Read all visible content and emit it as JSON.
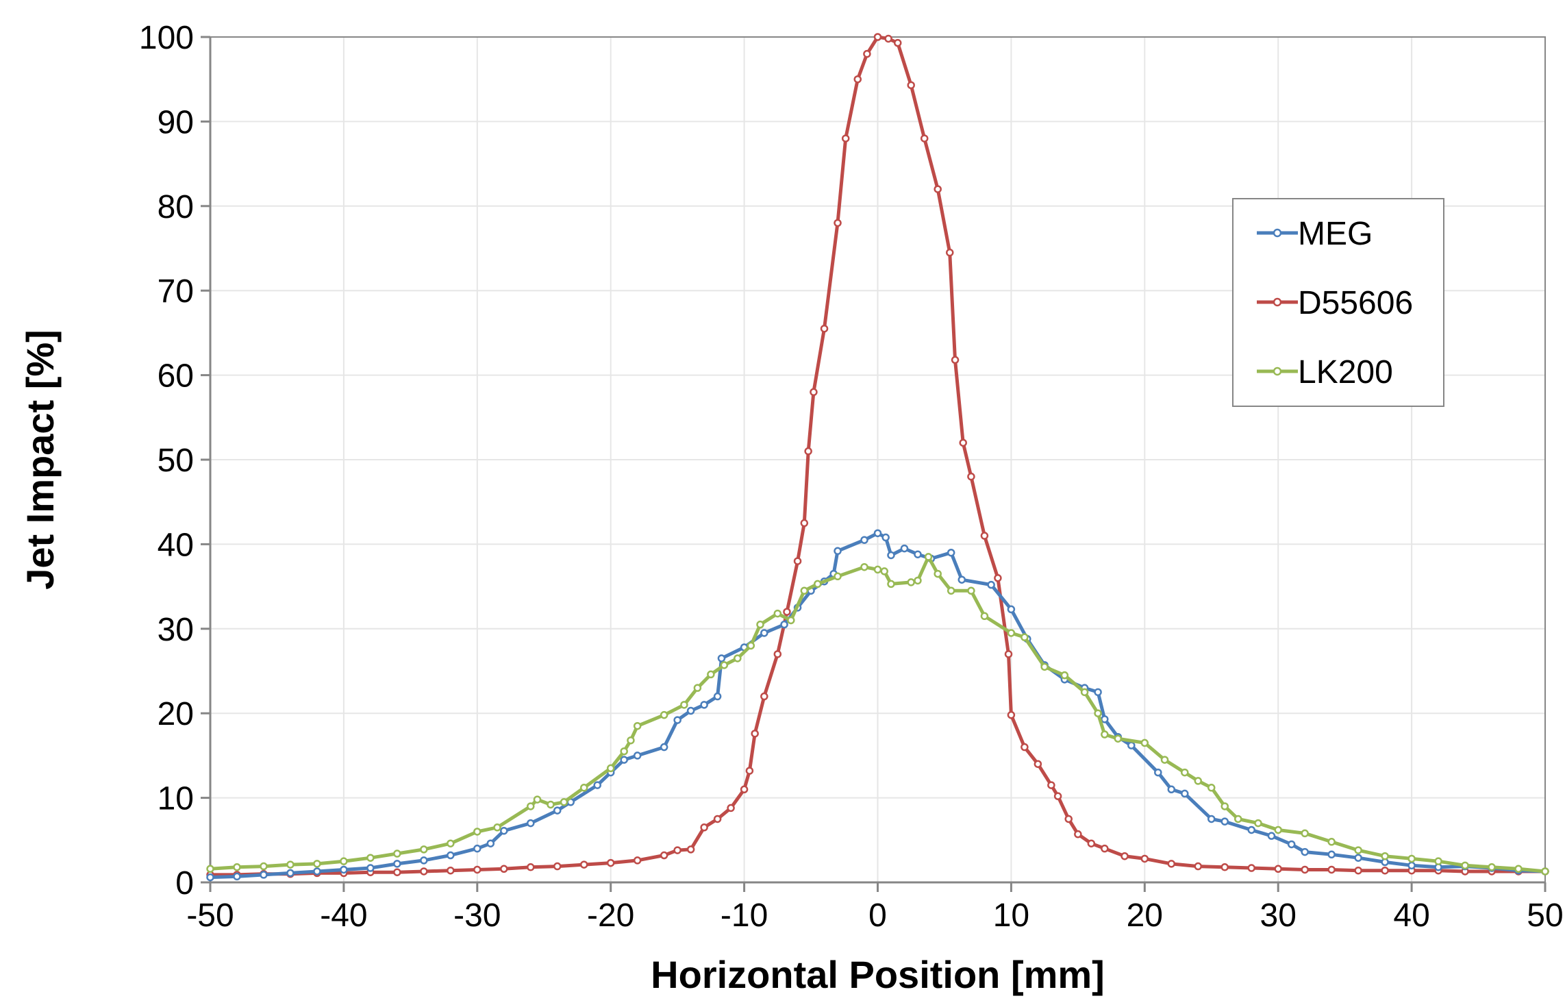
{
  "chart_data": {
    "type": "line",
    "xlabel": "Horizontal Position [mm]",
    "ylabel": "Jet Impact [%]",
    "xlim": [
      -50,
      50
    ],
    "ylim": [
      0,
      100
    ],
    "xticks": [
      -50,
      -40,
      -30,
      -20,
      -10,
      0,
      10,
      20,
      30,
      40,
      50
    ],
    "yticks": [
      0,
      10,
      20,
      30,
      40,
      50,
      60,
      70,
      80,
      90,
      100
    ],
    "grid": "vertical and horizontal, light gray",
    "legend_position": "right",
    "series": [
      {
        "name": "MEG",
        "color": "#4a7ebb",
        "points": [
          [
            -50,
            0.6
          ],
          [
            -48,
            0.7
          ],
          [
            -46,
            0.9
          ],
          [
            -44,
            1.1
          ],
          [
            -42,
            1.3
          ],
          [
            -40,
            1.5
          ],
          [
            -38,
            1.7
          ],
          [
            -36,
            2.2
          ],
          [
            -34,
            2.6
          ],
          [
            -32,
            3.2
          ],
          [
            -30,
            4.0
          ],
          [
            -29,
            4.6
          ],
          [
            -28,
            6.1
          ],
          [
            -26,
            7.0
          ],
          [
            -24,
            8.5
          ],
          [
            -23,
            9.5
          ],
          [
            -21,
            11.5
          ],
          [
            -20,
            13.0
          ],
          [
            -19,
            14.5
          ],
          [
            -18,
            15.0
          ],
          [
            -16,
            16.0
          ],
          [
            -15,
            19.2
          ],
          [
            -14,
            20.3
          ],
          [
            -13,
            21.0
          ],
          [
            -12,
            22.0
          ],
          [
            -11.7,
            26.5
          ],
          [
            -10,
            27.8
          ],
          [
            -8.5,
            29.5
          ],
          [
            -7,
            30.5
          ],
          [
            -6,
            32.5
          ],
          [
            -5,
            34.5
          ],
          [
            -4,
            35.6
          ],
          [
            -3.3,
            36.5
          ],
          [
            -3,
            39.2
          ],
          [
            -1,
            40.5
          ],
          [
            0,
            41.3
          ],
          [
            0.6,
            40.8
          ],
          [
            1,
            38.7
          ],
          [
            2,
            39.5
          ],
          [
            3,
            38.8
          ],
          [
            4,
            38.3
          ],
          [
            5.5,
            39.0
          ],
          [
            6.3,
            35.8
          ],
          [
            8.5,
            35.2
          ],
          [
            10,
            32.3
          ],
          [
            11.2,
            28.8
          ],
          [
            12.5,
            25.7
          ],
          [
            14,
            24.0
          ],
          [
            15.5,
            23.0
          ],
          [
            16.5,
            22.5
          ],
          [
            17,
            19.3
          ],
          [
            18,
            17.2
          ],
          [
            19,
            16.2
          ],
          [
            21,
            13.0
          ],
          [
            22,
            11.0
          ],
          [
            23,
            10.5
          ],
          [
            25,
            7.5
          ],
          [
            26,
            7.2
          ],
          [
            28,
            6.2
          ],
          [
            29.5,
            5.5
          ],
          [
            31,
            4.5
          ],
          [
            32,
            3.6
          ],
          [
            34,
            3.3
          ],
          [
            36,
            2.9
          ],
          [
            38,
            2.4
          ],
          [
            40,
            2.0
          ],
          [
            42,
            1.8
          ],
          [
            44,
            1.9
          ],
          [
            46,
            1.7
          ],
          [
            48,
            1.4
          ],
          [
            50,
            1.3
          ]
        ]
      },
      {
        "name": "D55606",
        "color": "#be4b48",
        "points": [
          [
            -50,
            0.9
          ],
          [
            -48,
            0.9
          ],
          [
            -46,
            1.0
          ],
          [
            -44,
            1.0
          ],
          [
            -42,
            1.1
          ],
          [
            -40,
            1.1
          ],
          [
            -38,
            1.2
          ],
          [
            -36,
            1.2
          ],
          [
            -34,
            1.3
          ],
          [
            -32,
            1.4
          ],
          [
            -30,
            1.5
          ],
          [
            -28,
            1.6
          ],
          [
            -26,
            1.8
          ],
          [
            -24,
            1.9
          ],
          [
            -22,
            2.1
          ],
          [
            -20,
            2.3
          ],
          [
            -18,
            2.6
          ],
          [
            -16,
            3.2
          ],
          [
            -15,
            3.8
          ],
          [
            -14,
            3.9
          ],
          [
            -13,
            6.5
          ],
          [
            -12,
            7.5
          ],
          [
            -11,
            8.8
          ],
          [
            -10,
            11.0
          ],
          [
            -9.6,
            13.2
          ],
          [
            -9.2,
            17.6
          ],
          [
            -8.5,
            22.0
          ],
          [
            -7.5,
            27.0
          ],
          [
            -6.8,
            32.0
          ],
          [
            -6,
            38.0
          ],
          [
            -5.5,
            42.5
          ],
          [
            -5.2,
            51.0
          ],
          [
            -4.8,
            58.0
          ],
          [
            -4,
            65.5
          ],
          [
            -3,
            78.0
          ],
          [
            -2.4,
            88.0
          ],
          [
            -1.5,
            95.0
          ],
          [
            -0.8,
            98.0
          ],
          [
            0,
            100.0
          ],
          [
            0.8,
            99.8
          ],
          [
            1.5,
            99.3
          ],
          [
            2.5,
            94.3
          ],
          [
            3.5,
            88.0
          ],
          [
            4.5,
            82.0
          ],
          [
            5.4,
            74.5
          ],
          [
            5.8,
            61.8
          ],
          [
            6.4,
            52.0
          ],
          [
            7,
            48.0
          ],
          [
            8,
            41.0
          ],
          [
            9,
            36.0
          ],
          [
            9.8,
            27.0
          ],
          [
            10,
            19.8
          ],
          [
            11,
            16.0
          ],
          [
            12,
            14.0
          ],
          [
            13,
            11.5
          ],
          [
            13.5,
            10.2
          ],
          [
            14.3,
            7.5
          ],
          [
            15,
            5.7
          ],
          [
            16,
            4.6
          ],
          [
            17,
            4.0
          ],
          [
            18.5,
            3.1
          ],
          [
            20,
            2.8
          ],
          [
            22,
            2.2
          ],
          [
            24,
            1.9
          ],
          [
            26,
            1.8
          ],
          [
            28,
            1.7
          ],
          [
            30,
            1.6
          ],
          [
            32,
            1.5
          ],
          [
            34,
            1.5
          ],
          [
            36,
            1.4
          ],
          [
            38,
            1.4
          ],
          [
            40,
            1.4
          ],
          [
            42,
            1.4
          ],
          [
            44,
            1.3
          ],
          [
            46,
            1.3
          ],
          [
            48,
            1.3
          ],
          [
            50,
            1.3
          ]
        ]
      },
      {
        "name": "LK200",
        "color": "#98b954",
        "points": [
          [
            -50,
            1.6
          ],
          [
            -48,
            1.8
          ],
          [
            -46,
            1.9
          ],
          [
            -44,
            2.1
          ],
          [
            -42,
            2.2
          ],
          [
            -40,
            2.5
          ],
          [
            -38,
            2.9
          ],
          [
            -36,
            3.4
          ],
          [
            -34,
            3.9
          ],
          [
            -32,
            4.6
          ],
          [
            -30,
            6.0
          ],
          [
            -28.5,
            6.5
          ],
          [
            -26,
            9.0
          ],
          [
            -25.5,
            9.8
          ],
          [
            -24.5,
            9.2
          ],
          [
            -23.5,
            9.5
          ],
          [
            -22,
            11.2
          ],
          [
            -20,
            13.5
          ],
          [
            -19,
            15.5
          ],
          [
            -18.5,
            16.8
          ],
          [
            -18,
            18.5
          ],
          [
            -16,
            19.8
          ],
          [
            -14.5,
            21.0
          ],
          [
            -13.5,
            23.0
          ],
          [
            -12.5,
            24.6
          ],
          [
            -11.5,
            25.7
          ],
          [
            -10.5,
            26.5
          ],
          [
            -9.5,
            28.0
          ],
          [
            -8.8,
            30.5
          ],
          [
            -7.5,
            31.8
          ],
          [
            -6.5,
            31.0
          ],
          [
            -5.5,
            34.5
          ],
          [
            -4.5,
            35.3
          ],
          [
            -3,
            36.2
          ],
          [
            -1,
            37.3
          ],
          [
            0,
            37.0
          ],
          [
            0.5,
            36.8
          ],
          [
            1,
            35.3
          ],
          [
            2.5,
            35.5
          ],
          [
            3,
            35.7
          ],
          [
            3.8,
            38.5
          ],
          [
            4.5,
            36.5
          ],
          [
            5.5,
            34.5
          ],
          [
            7,
            34.5
          ],
          [
            8,
            31.5
          ],
          [
            10,
            29.5
          ],
          [
            11,
            29.0
          ],
          [
            12.5,
            25.5
          ],
          [
            14,
            24.5
          ],
          [
            15.5,
            22.5
          ],
          [
            16.5,
            20.0
          ],
          [
            17,
            17.5
          ],
          [
            18,
            17.0
          ],
          [
            20,
            16.5
          ],
          [
            21.5,
            14.5
          ],
          [
            23,
            13.0
          ],
          [
            24,
            12.0
          ],
          [
            25,
            11.2
          ],
          [
            26,
            9.0
          ],
          [
            27,
            7.5
          ],
          [
            28.5,
            7.0
          ],
          [
            30,
            6.2
          ],
          [
            32,
            5.8
          ],
          [
            34,
            4.8
          ],
          [
            36,
            3.8
          ],
          [
            38,
            3.1
          ],
          [
            40,
            2.8
          ],
          [
            42,
            2.5
          ],
          [
            44,
            2.0
          ],
          [
            46,
            1.8
          ],
          [
            48,
            1.6
          ],
          [
            50,
            1.3
          ]
        ]
      }
    ]
  }
}
